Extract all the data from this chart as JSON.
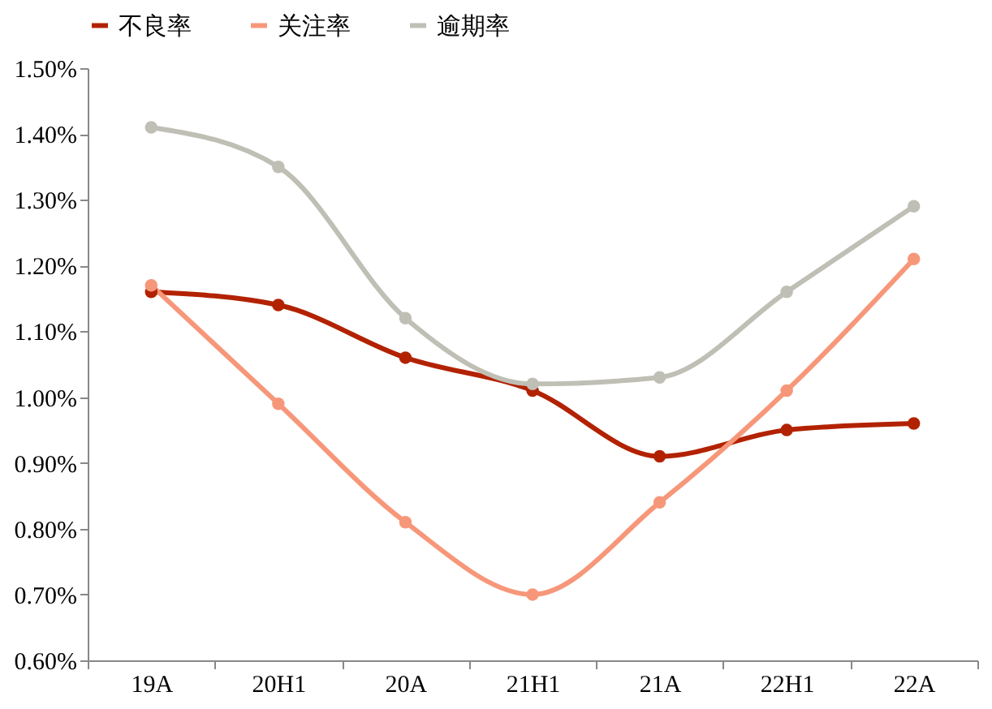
{
  "chart_data": {
    "type": "line",
    "categories": [
      "19A",
      "20H1",
      "20A",
      "21H1",
      "21A",
      "22H1",
      "22A"
    ],
    "series": [
      {
        "name": "不良率",
        "color": "#b22200",
        "values": [
          1.16,
          1.14,
          1.06,
          1.01,
          0.91,
          0.95,
          0.96
        ]
      },
      {
        "name": "关注率",
        "color": "#f7977a",
        "values": [
          1.17,
          0.99,
          0.81,
          0.7,
          0.84,
          1.01,
          1.21
        ]
      },
      {
        "name": "逾期率",
        "color": "#bfbfb5",
        "values": [
          1.41,
          1.35,
          1.12,
          1.02,
          1.03,
          1.16,
          1.29
        ]
      }
    ],
    "ylim": [
      0.6,
      1.5
    ],
    "yticks": [
      {
        "value": 0.6,
        "label": "0.60%"
      },
      {
        "value": 0.7,
        "label": "0.70%"
      },
      {
        "value": 0.8,
        "label": "0.80%"
      },
      {
        "value": 0.9,
        "label": "0.90%"
      },
      {
        "value": 1.0,
        "label": "1.00%"
      },
      {
        "value": 1.1,
        "label": "1.10%"
      },
      {
        "value": 1.2,
        "label": "1.20%"
      },
      {
        "value": 1.3,
        "label": "1.30%"
      },
      {
        "value": 1.4,
        "label": "1.40%"
      },
      {
        "value": 1.5,
        "label": "1.50%"
      }
    ],
    "legend": "top",
    "marker": "circle",
    "line_style": "solid",
    "grid": false
  }
}
